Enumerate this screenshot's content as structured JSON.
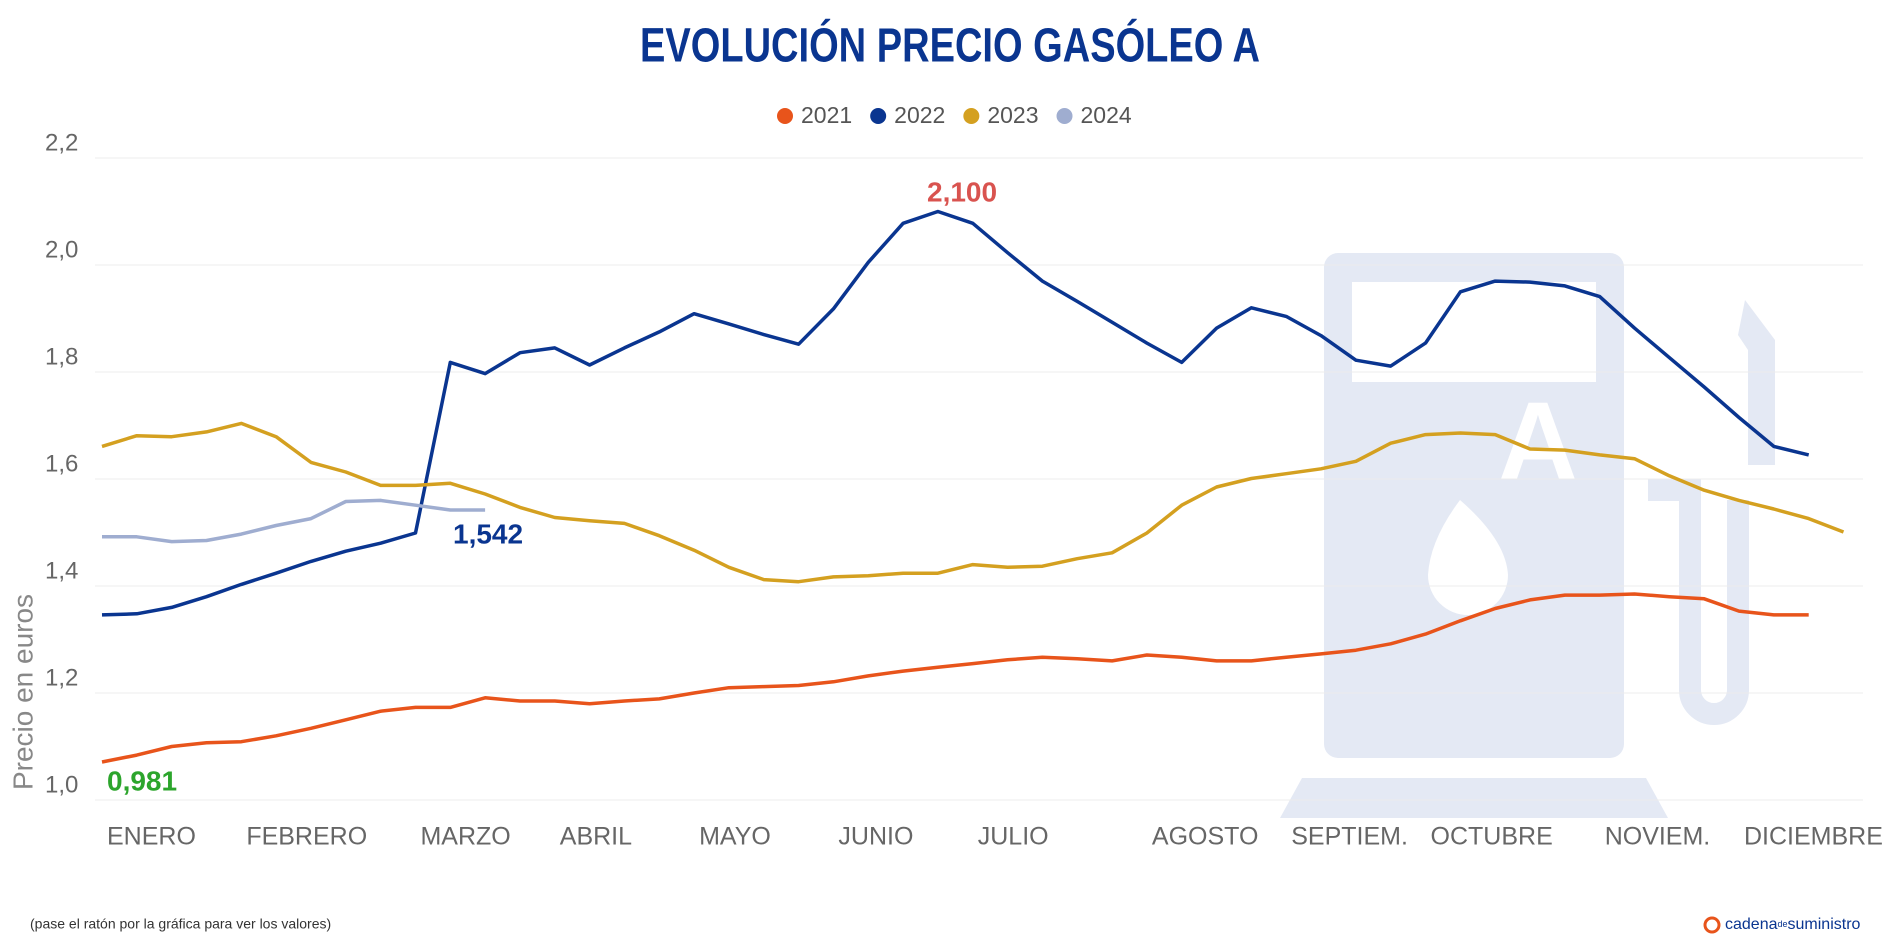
{
  "chart_data": {
    "type": "line",
    "title": "EVOLUCIÓN PRECIO GASÓLEO A",
    "y_label": "Precio en euros",
    "categories": [
      "ENERO",
      null,
      null,
      null,
      "FEBRERO",
      null,
      null,
      null,
      null,
      "MARZO",
      null,
      null,
      null,
      "ABRIL",
      null,
      null,
      null,
      "MAYO",
      null,
      null,
      null,
      "JUNIO",
      null,
      null,
      null,
      "JULIO",
      null,
      null,
      null,
      null,
      "AGOSTO",
      null,
      null,
      null,
      "SEPTIEM.",
      null,
      null,
      null,
      "OCTUBRE",
      null,
      null,
      null,
      null,
      "NOVIEM.",
      null,
      null,
      null,
      "DICIEMBRE",
      null,
      null,
      null
    ],
    "series": [
      {
        "name": "2021",
        "color": "#e8541b",
        "values": [
          1.071,
          1.084,
          1.1,
          1.107,
          1.109,
          1.12,
          1.134,
          1.15,
          1.166,
          1.173,
          1.173,
          1.191,
          1.185,
          1.185,
          1.18,
          1.185,
          1.189,
          1.2,
          1.21,
          1.212,
          1.214,
          1.221,
          1.232,
          1.241,
          1.248,
          1.255,
          1.262,
          1.267,
          1.264,
          1.26,
          1.271,
          1.267,
          1.26,
          1.26,
          1.267,
          1.273,
          1.28,
          1.292,
          1.31,
          1.335,
          1.358,
          1.374,
          1.383,
          1.383,
          1.385,
          1.38,
          1.376,
          1.353,
          1.346,
          1.346,
          null
        ]
      },
      {
        "name": "2022",
        "color": "#0a3590",
        "values": [
          1.346,
          1.348,
          1.36,
          1.38,
          1.403,
          1.424,
          1.446,
          1.465,
          1.48,
          1.499,
          1.818,
          1.797,
          1.836,
          1.845,
          1.813,
          1.845,
          1.875,
          1.909,
          1.89,
          1.87,
          1.852,
          1.918,
          2.005,
          2.078,
          2.1,
          2.078,
          2.023,
          1.97,
          1.932,
          1.893,
          1.854,
          1.818,
          1.882,
          1.92,
          1.904,
          1.868,
          1.822,
          1.811,
          1.854,
          1.95,
          1.97,
          1.968,
          1.961,
          1.941,
          1.882,
          1.827,
          1.772,
          1.715,
          1.661,
          1.645,
          null
        ]
      },
      {
        "name": "2023",
        "color": "#d4a020",
        "values": [
          1.661,
          1.681,
          1.679,
          1.688,
          1.704,
          1.679,
          1.631,
          1.613,
          1.588,
          1.588,
          1.592,
          1.572,
          1.547,
          1.528,
          1.522,
          1.517,
          1.494,
          1.467,
          1.435,
          1.412,
          1.408,
          1.417,
          1.419,
          1.424,
          1.424,
          1.44,
          1.435,
          1.437,
          1.451,
          1.462,
          1.499,
          1.551,
          1.585,
          1.601,
          1.61,
          1.619,
          1.633,
          1.667,
          1.683,
          1.686,
          1.683,
          1.656,
          1.654,
          1.645,
          1.638,
          1.606,
          1.579,
          1.56,
          1.544,
          1.526,
          1.501
        ]
      },
      {
        "name": "2024",
        "color": "#9fadd0",
        "values": [
          1.492,
          1.492,
          1.483,
          1.485,
          1.497,
          1.513,
          1.526,
          1.558,
          1.56,
          1.551,
          1.542,
          1.542,
          null,
          null,
          null,
          null,
          null,
          null,
          null,
          null,
          null,
          null,
          null,
          null,
          null,
          null,
          null,
          null,
          null,
          null,
          null,
          null,
          null,
          null,
          null,
          null,
          null,
          null,
          null,
          null,
          null,
          null,
          null,
          null,
          null,
          null,
          null,
          null,
          null,
          null,
          null
        ]
      }
    ],
    "annotations": [
      {
        "text": "2,100",
        "color": "#d9534f"
      },
      {
        "text": "0,981",
        "color": "#2ca52c"
      },
      {
        "text": "1,542",
        "color": "#0a3590"
      }
    ],
    "ylim": [
      1.0,
      2.2
    ],
    "yticks": [
      {
        "value": 1.0,
        "label": "1,0"
      },
      {
        "value": 1.2,
        "label": "1,2"
      },
      {
        "value": 1.4,
        "label": "1,4"
      },
      {
        "value": 1.6,
        "label": "1,6"
      },
      {
        "value": 1.8,
        "label": "1,8"
      },
      {
        "value": 2.0,
        "label": "2,0"
      },
      {
        "value": 2.2,
        "label": "2,2"
      }
    ],
    "grid": true,
    "legend": "top",
    "footnote": "(pase el ratón por la gráfica para ver los valores)",
    "brand": {
      "first": "cadena",
      "middle": "de",
      "last": "suministro"
    }
  }
}
